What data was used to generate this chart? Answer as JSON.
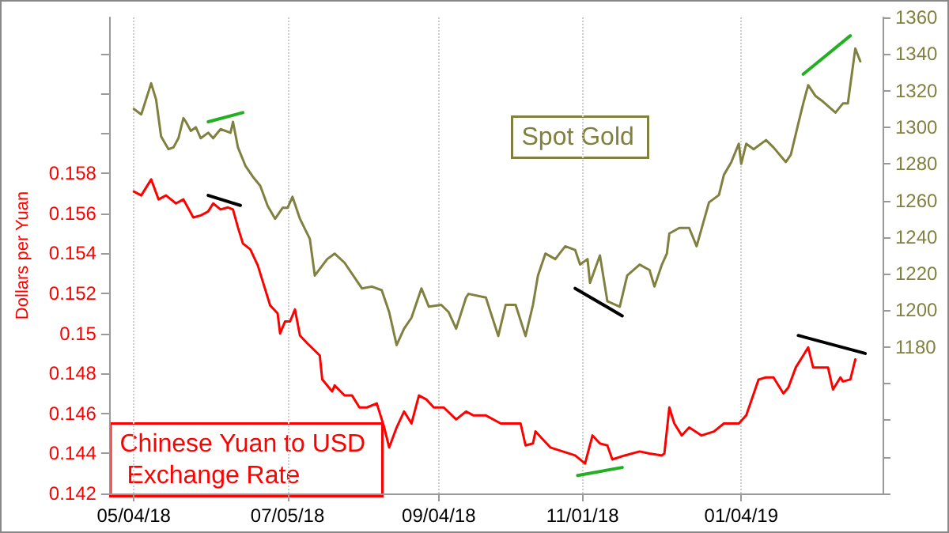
{
  "chart_data": {
    "type": "line",
    "ylabel": "Dollars per Yuan",
    "xlim": [
      "2018-04-24",
      "2019-03-02"
    ],
    "xticks": [
      {
        "value": "2018-05-04",
        "label": "05/04/18"
      },
      {
        "value": "2018-07-05",
        "label": "07/05/18"
      },
      {
        "value": "2018-09-04",
        "label": "09/04/18"
      },
      {
        "value": "2018-11-01",
        "label": "11/01/18"
      },
      {
        "value": "2019-01-04",
        "label": "01/04/19"
      }
    ],
    "ylim": [
      0.142,
      0.1658
    ],
    "yticks": [
      0.142,
      0.144,
      0.146,
      0.148,
      0.15,
      0.152,
      0.154,
      0.156,
      0.158,
      {
        "value": 0.16,
        "label": null
      },
      {
        "value": 0.162,
        "label": null
      },
      {
        "value": 0.164,
        "label": null
      }
    ],
    "y2lim": [
      1100,
      1360
    ],
    "y2ticks": [
      {
        "value": 1100,
        "label": null
      },
      {
        "value": 1120,
        "label": null
      },
      {
        "value": 1140,
        "label": null
      },
      {
        "value": 1160,
        "label": null
      },
      1180,
      1200,
      1220,
      1240,
      1260,
      1280,
      1300,
      1320,
      1340,
      1360
    ],
    "grid": "x",
    "legend": false,
    "marker": "none",
    "line_style": "solid",
    "series": [
      {
        "name": "Spot Gold",
        "color": "#808040",
        "axis": "y2",
        "x": [
          "2018-05-04",
          "2018-05-07",
          "2018-05-11",
          "2018-05-13",
          "2018-05-15",
          "2018-05-18",
          "2018-05-20",
          "2018-05-22",
          "2018-05-24",
          "2018-05-25",
          "2018-05-27",
          "2018-05-29",
          "2018-05-31",
          "2018-06-03",
          "2018-06-05",
          "2018-06-08",
          "2018-06-12",
          "2018-06-13",
          "2018-06-15",
          "2018-06-18",
          "2018-06-21",
          "2018-06-24",
          "2018-06-27",
          "2018-06-30",
          "2018-07-03",
          "2018-07-05",
          "2018-07-07",
          "2018-07-10",
          "2018-07-14",
          "2018-07-16",
          "2018-07-21",
          "2018-07-24",
          "2018-07-28",
          "2018-08-04",
          "2018-08-08",
          "2018-08-12",
          "2018-08-15",
          "2018-08-18",
          "2018-08-21",
          "2018-08-24",
          "2018-08-28",
          "2018-08-31",
          "2018-09-05",
          "2018-09-08",
          "2018-09-11",
          "2018-09-15",
          "2018-09-16",
          "2018-09-23",
          "2018-09-28",
          "2018-10-01",
          "2018-10-05",
          "2018-10-09",
          "2018-10-12",
          "2018-10-14",
          "2018-10-17",
          "2018-10-21",
          "2018-10-25",
          "2018-10-29",
          "2018-10-31",
          "2018-11-03",
          "2018-11-04",
          "2018-11-08",
          "2018-11-11",
          "2018-11-16",
          "2018-11-19",
          "2018-11-24",
          "2018-11-28",
          "2018-11-30",
          "2018-12-03",
          "2018-12-05",
          "2018-12-06",
          "2018-12-10",
          "2018-12-14",
          "2018-12-17",
          "2018-12-22",
          "2018-12-26",
          "2018-12-28",
          "2018-12-31",
          "2019-01-03",
          "2019-01-04",
          "2019-01-06",
          "2019-01-09",
          "2019-01-14",
          "2019-01-17",
          "2019-01-22",
          "2019-01-24",
          "2019-01-27",
          "2019-01-29",
          "2019-01-31",
          "2019-02-03",
          "2019-02-06",
          "2019-02-11",
          "2019-02-14",
          "2019-02-16",
          "2019-02-19",
          "2019-02-21"
        ],
        "values": [
          1310,
          1307,
          1324,
          1315,
          1295,
          1288,
          1289,
          1294,
          1305,
          1303,
          1298,
          1300,
          1294,
          1297,
          1294,
          1299,
          1297,
          1303,
          1289,
          1279,
          1273,
          1268,
          1257,
          1250,
          1256,
          1256,
          1262,
          1250,
          1239,
          1219,
          1228,
          1231,
          1226,
          1212,
          1213,
          1211,
          1199,
          1181,
          1190,
          1196,
          1212,
          1202,
          1203,
          1199,
          1190,
          1207,
          1209,
          1207,
          1186,
          1203,
          1203,
          1186,
          1203,
          1219,
          1231,
          1228,
          1235,
          1233,
          1225,
          1228,
          1215,
          1230,
          1205,
          1202,
          1219,
          1225,
          1222,
          1213,
          1225,
          1231,
          1242,
          1245,
          1245,
          1235,
          1259,
          1263,
          1274,
          1281,
          1291,
          1280,
          1291,
          1288,
          1293,
          1289,
          1281,
          1285,
          1302,
          1313,
          1323,
          1317,
          1314,
          1308,
          1313,
          1313,
          1343,
          1336
        ]
      },
      {
        "name": "Chinese Yuan to USD Exchange Rate",
        "color": "#ff0000",
        "x": [
          "2018-05-04",
          "2018-05-07",
          "2018-05-11",
          "2018-05-14",
          "2018-05-17",
          "2018-05-21",
          "2018-05-24",
          "2018-05-28",
          "2018-05-31",
          "2018-06-03",
          "2018-06-05",
          "2018-06-08",
          "2018-06-11",
          "2018-06-13",
          "2018-06-15",
          "2018-06-17",
          "2018-06-20",
          "2018-06-23",
          "2018-06-25",
          "2018-06-28",
          "2018-07-01",
          "2018-07-02",
          "2018-07-04",
          "2018-07-06",
          "2018-07-08",
          "2018-07-10",
          "2018-07-13",
          "2018-07-18",
          "2018-07-19",
          "2018-07-23",
          "2018-07-24",
          "2018-07-28",
          "2018-07-31",
          "2018-08-03",
          "2018-08-06",
          "2018-08-10",
          "2018-08-13",
          "2018-08-15",
          "2018-08-18",
          "2018-08-21",
          "2018-08-24",
          "2018-08-27",
          "2018-08-30",
          "2018-09-02",
          "2018-09-06",
          "2018-09-11",
          "2018-09-15",
          "2018-09-18",
          "2018-09-23",
          "2018-09-29",
          "2018-10-07",
          "2018-10-09",
          "2018-10-12",
          "2018-10-13",
          "2018-10-16",
          "2018-10-19",
          "2018-10-24",
          "2018-10-29",
          "2018-11-02",
          "2018-11-05",
          "2018-11-08",
          "2018-11-11",
          "2018-11-13",
          "2018-11-18",
          "2018-11-24",
          "2018-11-28",
          "2018-12-03",
          "2018-12-04",
          "2018-12-06",
          "2018-12-08",
          "2018-12-11",
          "2018-12-14",
          "2018-12-19",
          "2018-12-24",
          "2018-12-28",
          "2018-12-31",
          "2019-01-03",
          "2019-01-06",
          "2019-01-11",
          "2019-01-14",
          "2019-01-17",
          "2019-01-21",
          "2019-01-23",
          "2019-01-26",
          "2019-01-31",
          "2019-02-02",
          "2019-02-08",
          "2019-02-10",
          "2019-02-13",
          "2019-02-14",
          "2019-02-17",
          "2019-02-19"
        ],
        "values": [
          0.1571,
          0.1569,
          0.1577,
          0.1567,
          0.1569,
          0.1565,
          0.1567,
          0.1558,
          0.1559,
          0.1561,
          0.1565,
          0.1562,
          0.1563,
          0.1562,
          0.1553,
          0.1545,
          0.1542,
          0.1534,
          0.1526,
          0.1514,
          0.151,
          0.15,
          0.1506,
          0.1506,
          0.1512,
          0.1499,
          0.1495,
          0.1489,
          0.1477,
          0.1471,
          0.1474,
          0.1469,
          0.1469,
          0.1463,
          0.1463,
          0.1465,
          0.1453,
          0.1443,
          0.1453,
          0.1461,
          0.1455,
          0.1469,
          0.1467,
          0.1463,
          0.1463,
          0.1457,
          0.1461,
          0.1459,
          0.1459,
          0.1455,
          0.1455,
          0.1444,
          0.1445,
          0.1451,
          0.1447,
          0.1443,
          0.1441,
          0.1439,
          0.1435,
          0.1449,
          0.1445,
          0.1444,
          0.1437,
          0.1439,
          0.1441,
          0.144,
          0.1439,
          0.144,
          0.1463,
          0.1455,
          0.1449,
          0.1453,
          0.1449,
          0.1451,
          0.1455,
          0.1455,
          0.1455,
          0.1459,
          0.1477,
          0.1478,
          0.1478,
          0.147,
          0.1473,
          0.1483,
          0.1493,
          0.1483,
          0.1483,
          0.1472,
          0.1478,
          0.1476,
          0.1477,
          0.1487
        ]
      },
      {
        "color": "#22b022",
        "axis": "y2",
        "x": [
          "2018-06-03",
          "2018-06-17"
        ],
        "values": [
          1303,
          1308
        ]
      },
      {
        "color": "#000000",
        "x": [
          "2018-06-03",
          "2018-06-16"
        ],
        "values": [
          0.1569,
          0.1564
        ]
      },
      {
        "color": "#000000",
        "axis": "y2",
        "x": [
          "2018-10-29",
          "2018-11-17"
        ],
        "values": [
          1212,
          1197
        ]
      },
      {
        "color": "#22b022",
        "x": [
          "2018-10-30",
          "2018-11-17"
        ],
        "values": [
          0.1429,
          0.1433
        ]
      },
      {
        "color": "#22b022",
        "axis": "y2",
        "x": [
          "2019-01-29",
          "2019-02-17"
        ],
        "values": [
          1329,
          1350
        ]
      },
      {
        "color": "#000000",
        "x": [
          "2019-01-27",
          "2019-02-23"
        ],
        "values": [
          0.1499,
          0.149
        ]
      }
    ]
  }
}
